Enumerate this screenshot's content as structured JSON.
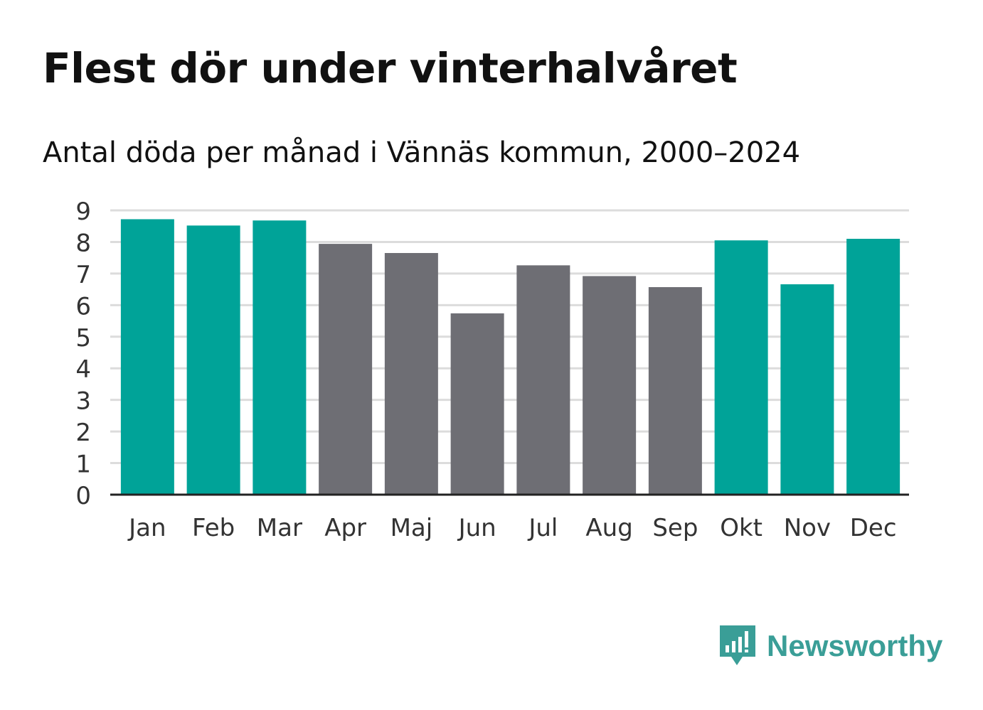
{
  "title": "Flest dör under vinterhalvåret",
  "subtitle": "Antal döda per månad i Vännäs kommun, 2000–2024",
  "colors": {
    "winter": "#00a398",
    "summer": "#6e6e74",
    "grid": "#dcdcdc",
    "axis": "#222222",
    "text": "#111111",
    "tick": "#333333",
    "brand": "#3a9e97"
  },
  "logo": {
    "icon": "newsworthy-chart-bubble-icon",
    "text": "Newsworthy"
  },
  "chart_data": {
    "type": "bar",
    "title": "Flest dör under vinterhalvåret",
    "subtitle": "Antal döda per månad i Vännäs kommun, 2000–2024",
    "xlabel": "",
    "ylabel": "",
    "ylim": [
      0,
      9
    ],
    "yticks": [
      0,
      1,
      2,
      3,
      4,
      5,
      6,
      7,
      8,
      9
    ],
    "grid": true,
    "categories": [
      "Jan",
      "Feb",
      "Mar",
      "Apr",
      "Maj",
      "Jun",
      "Jul",
      "Aug",
      "Sep",
      "Okt",
      "Nov",
      "Dec"
    ],
    "values": [
      8.72,
      8.52,
      8.68,
      7.94,
      7.65,
      5.74,
      7.26,
      6.92,
      6.57,
      8.05,
      6.66,
      8.1
    ],
    "highlight": [
      "winter",
      "winter",
      "winter",
      "summer",
      "summer",
      "summer",
      "summer",
      "summer",
      "summer",
      "winter",
      "winter",
      "winter"
    ]
  }
}
